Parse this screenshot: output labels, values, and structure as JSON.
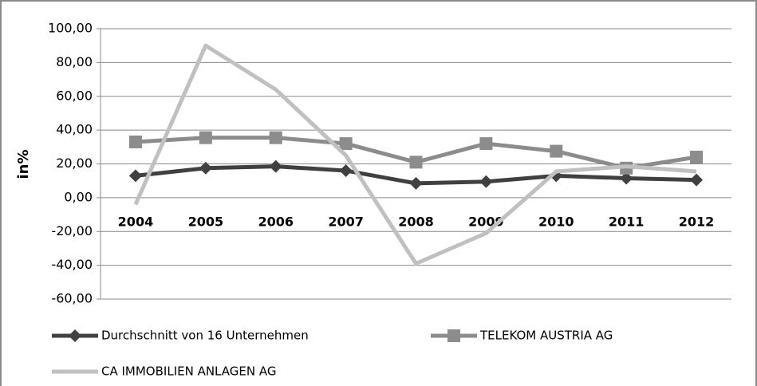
{
  "chart_data": {
    "type": "line",
    "y_label": "in%",
    "categories": [
      "2004",
      "2005",
      "2006",
      "2007",
      "2008",
      "2009",
      "2010",
      "2011",
      "2012"
    ],
    "series": [
      {
        "name": "Durchschnitt von 16 Unternehmen",
        "color": "#404040",
        "marker": "diamond",
        "values": [
          13,
          17.5,
          18.5,
          16,
          8.5,
          9.5,
          13,
          11.5,
          10.5
        ]
      },
      {
        "name": "TELEKOM AUSTRIA AG",
        "color": "#8c8c8c",
        "marker": "square",
        "values": [
          33,
          35.5,
          35.5,
          32,
          21,
          32,
          27.5,
          17.5,
          24
        ]
      },
      {
        "name": "CA IMMOBILIEN ANLAGEN AG",
        "color": "#c0c0c0",
        "marker": "none",
        "values": [
          -4,
          90,
          64,
          25,
          -39,
          -21,
          15.5,
          18.5,
          15.5
        ]
      }
    ],
    "ylim": [
      -60,
      100
    ],
    "yticks": [
      {
        "value": -60,
        "label": "-60,00"
      },
      {
        "value": -40,
        "label": "-40,00"
      },
      {
        "value": -20,
        "label": "-20,00"
      },
      {
        "value": 0,
        "label": "0,00"
      },
      {
        "value": 20,
        "label": "20,00"
      },
      {
        "value": 40,
        "label": "40,00"
      },
      {
        "value": 60,
        "label": "60,00"
      },
      {
        "value": 80,
        "label": "80,00"
      },
      {
        "value": 100,
        "label": "100,00"
      }
    ],
    "grid": true,
    "legend": "bottom"
  }
}
